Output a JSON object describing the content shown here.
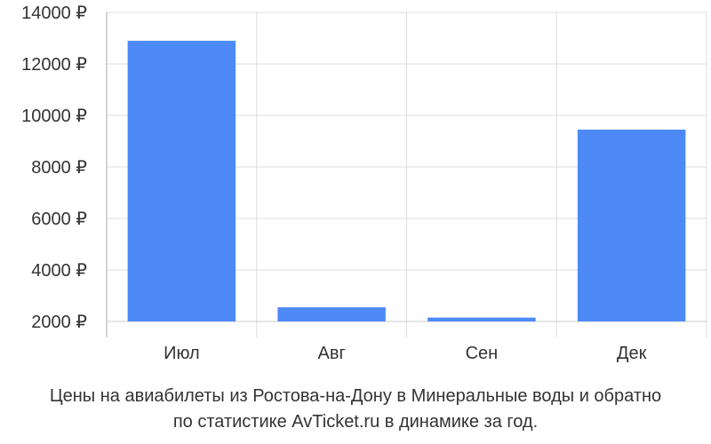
{
  "chart_data": {
    "type": "bar",
    "categories": [
      "Июл",
      "Авг",
      "Сен",
      "Дек"
    ],
    "values": [
      12900,
      2550,
      2150,
      9450
    ],
    "ylim": [
      2000,
      14000
    ],
    "yticks": [
      2000,
      4000,
      6000,
      8000,
      10000,
      12000,
      14000
    ],
    "ytick_labels": [
      "2000 ₽",
      "4000 ₽",
      "6000 ₽",
      "8000 ₽",
      "10000 ₽",
      "12000 ₽",
      "14000 ₽"
    ],
    "grid": true,
    "bar_color": "#4d8af7",
    "title": "",
    "xlabel": "",
    "ylabel": ""
  },
  "caption": {
    "line1": "Цены на авиабилеты из Ростова-на-Дону в Минеральные воды и обратно",
    "line2": "по статистике AvTicket.ru в динамике за год."
  }
}
